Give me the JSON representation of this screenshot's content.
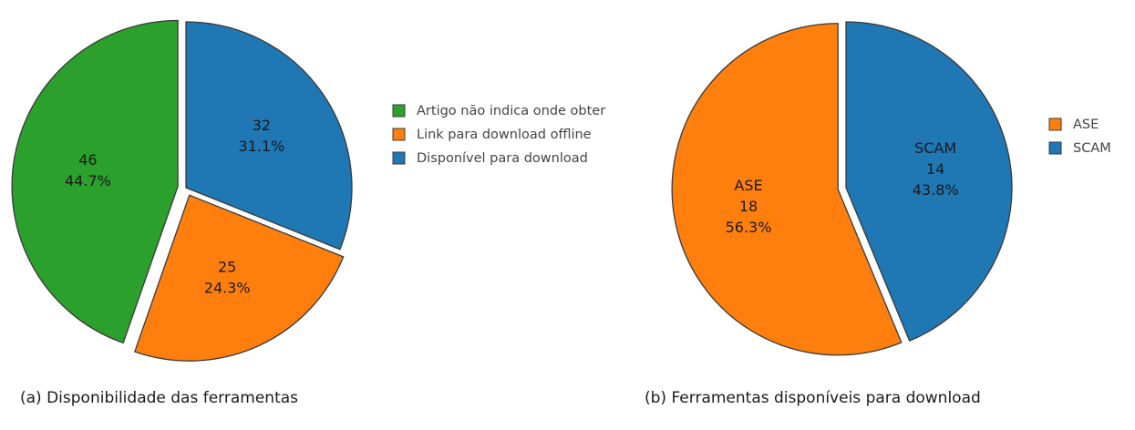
{
  "chart_data": [
    {
      "type": "pie",
      "title": "(a) Disponibilidade das ferramentas",
      "legend_position": "right",
      "start_angle_deg": 90,
      "slices": [
        {
          "label": "Disponível para download",
          "legend": "Disponível para download",
          "value": 32,
          "percent": "31.1%",
          "color": "#1f77b4",
          "explode": false,
          "show_name": false
        },
        {
          "label": "Link para download offline",
          "legend": "Link para download offline",
          "value": 25,
          "percent": "24.3%",
          "color": "#ff7f0e",
          "explode": true,
          "show_name": false
        },
        {
          "label": "Artigo não indica onde obter",
          "legend": "Artigo não indica onde obter",
          "value": 46,
          "percent": "44.7%",
          "color": "#2ca02c",
          "explode": true,
          "show_name": false
        }
      ],
      "legend_order": [
        2,
        1,
        0
      ]
    },
    {
      "type": "pie",
      "title": "(b) Ferramentas disponíveis para download",
      "legend_position": "right",
      "start_angle_deg": 90,
      "slices": [
        {
          "label": "SCAM",
          "legend": "SCAM",
          "value": 14,
          "percent": "43.8%",
          "color": "#1f77b4",
          "explode": false,
          "show_name": true
        },
        {
          "label": "ASE",
          "legend": "ASE",
          "value": 18,
          "percent": "56.3%",
          "color": "#ff7f0e",
          "explode": true,
          "show_name": true
        }
      ],
      "legend_order": [
        1,
        0
      ]
    }
  ]
}
